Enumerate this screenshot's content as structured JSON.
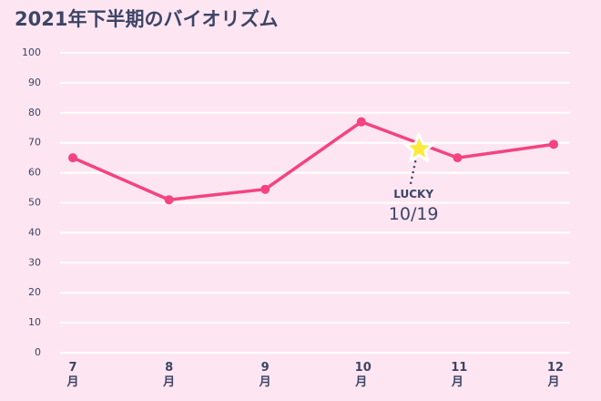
{
  "chart_data": {
    "type": "line",
    "title": "2021年下半期のバイオリズム",
    "categories": [
      "7月",
      "8月",
      "9月",
      "10月",
      "11月",
      "12月"
    ],
    "series": [
      {
        "name": "バイオリズム",
        "color": "#f4437f",
        "values": [
          65,
          51,
          54.5,
          77,
          65,
          69.5
        ]
      }
    ],
    "ylim": [
      0,
      100
    ],
    "yticks": [
      0,
      10,
      20,
      30,
      40,
      50,
      60,
      70,
      80,
      90,
      100
    ],
    "grid": true,
    "annotation": {
      "label": "LUCKY",
      "date": "10/19",
      "value": 68,
      "color": "#ffe93b"
    }
  }
}
